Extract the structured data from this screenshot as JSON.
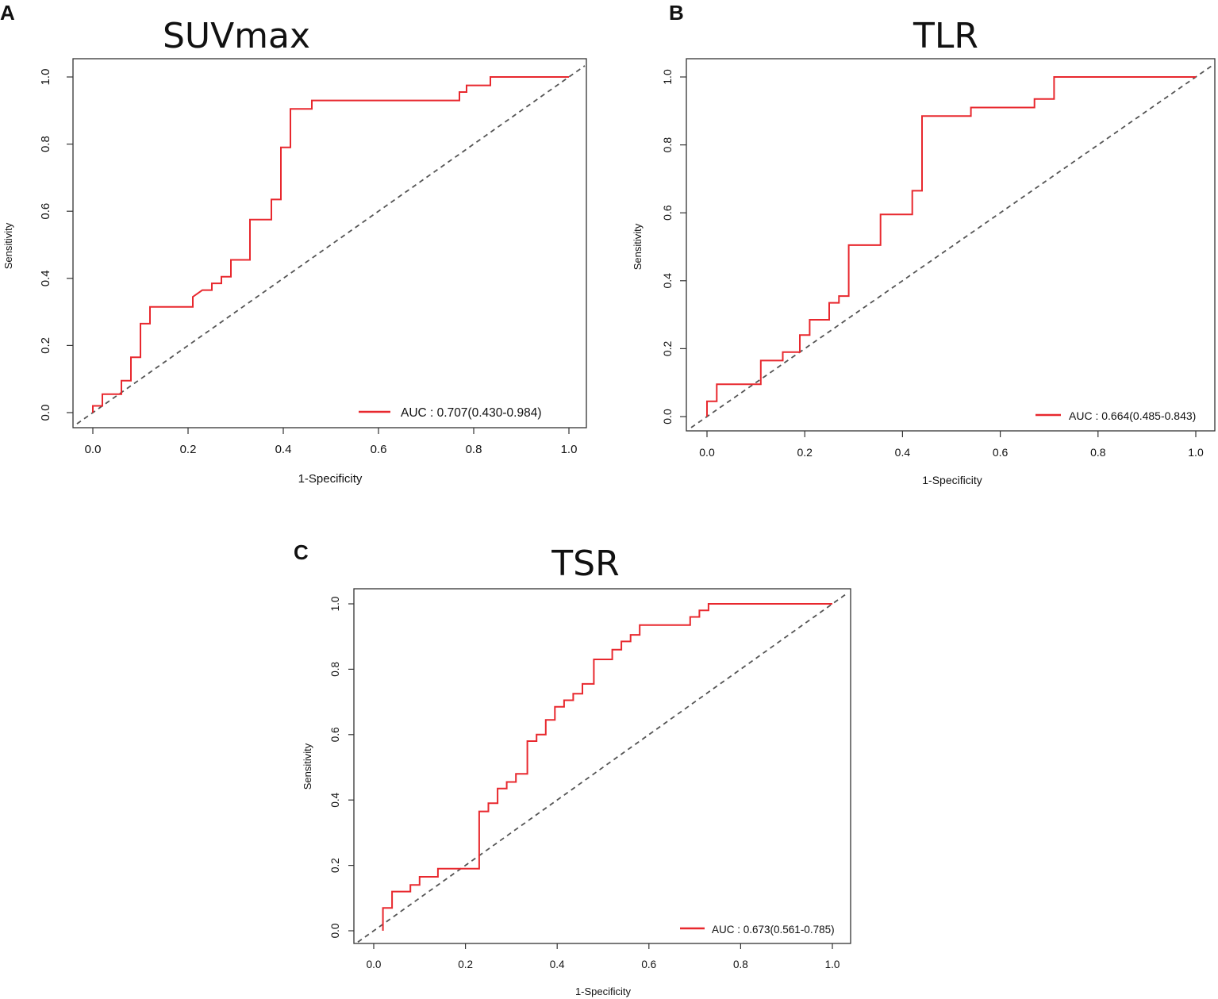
{
  "chart_data": [
    {
      "type": "line",
      "panel": "A",
      "title": "SUVmax",
      "xlabel": "1-Specificity",
      "ylabel": "Sensitivity",
      "xlim": [
        0,
        1
      ],
      "ylim": [
        0,
        1
      ],
      "xticks": [
        "0.0",
        "0.2",
        "0.4",
        "0.6",
        "0.8",
        "1.0"
      ],
      "yticks": [
        "0.0",
        "0.2",
        "0.4",
        "0.6",
        "0.8",
        "1.0"
      ],
      "legend": "AUC : 0.707(0.430-0.984)",
      "legend_position": "bottom-right",
      "reference_line": "diagonal dashed",
      "curve_color": "#e8282e",
      "series": [
        {
          "name": "SUVmax ROC",
          "x": [
            0,
            0,
            0.02,
            0.02,
            0.06,
            0.06,
            0.08,
            0.08,
            0.1,
            0.1,
            0.12,
            0.12,
            0.21,
            0.21,
            0.23,
            0.25,
            0.25,
            0.27,
            0.27,
            0.29,
            0.29,
            0.33,
            0.33,
            0.375,
            0.375,
            0.395,
            0.395,
            0.415,
            0.415,
            0.46,
            0.46,
            0.77,
            0.77,
            0.785,
            0.785,
            0.835,
            0.835,
            1.0
          ],
          "y": [
            0,
            0.02,
            0.02,
            0.055,
            0.055,
            0.095,
            0.095,
            0.165,
            0.165,
            0.265,
            0.265,
            0.315,
            0.315,
            0.345,
            0.365,
            0.365,
            0.385,
            0.385,
            0.405,
            0.405,
            0.455,
            0.455,
            0.575,
            0.575,
            0.635,
            0.635,
            0.79,
            0.79,
            0.905,
            0.905,
            0.93,
            0.93,
            0.955,
            0.955,
            0.975,
            0.975,
            1.0,
            1.0
          ]
        }
      ]
    },
    {
      "type": "line",
      "panel": "B",
      "title": "TLR",
      "xlabel": "1-Specificity",
      "ylabel": "Sensitivity",
      "xlim": [
        0,
        1
      ],
      "ylim": [
        0,
        1
      ],
      "xticks": [
        "0.0",
        "0.2",
        "0.4",
        "0.6",
        "0.8",
        "1.0"
      ],
      "yticks": [
        "0.0",
        "0.2",
        "0.4",
        "0.6",
        "0.8",
        "1.0"
      ],
      "legend": "AUC : 0.664(0.485-0.843)",
      "legend_position": "bottom-right",
      "reference_line": "diagonal dashed",
      "curve_color": "#e8282e",
      "series": [
        {
          "name": "TLR ROC",
          "x": [
            0,
            0,
            0.02,
            0.02,
            0.11,
            0.11,
            0.155,
            0.155,
            0.19,
            0.19,
            0.21,
            0.21,
            0.25,
            0.25,
            0.27,
            0.27,
            0.29,
            0.29,
            0.355,
            0.355,
            0.42,
            0.42,
            0.44,
            0.44,
            0.54,
            0.54,
            0.67,
            0.67,
            0.71,
            0.71,
            1.0
          ],
          "y": [
            0,
            0.045,
            0.045,
            0.095,
            0.095,
            0.165,
            0.165,
            0.19,
            0.19,
            0.24,
            0.24,
            0.285,
            0.285,
            0.335,
            0.335,
            0.355,
            0.355,
            0.505,
            0.505,
            0.595,
            0.595,
            0.665,
            0.665,
            0.885,
            0.885,
            0.91,
            0.91,
            0.935,
            0.935,
            1.0,
            1.0
          ]
        }
      ]
    },
    {
      "type": "line",
      "panel": "C",
      "title": "TSR",
      "xlabel": "1-Specificity",
      "ylabel": "Sensitivity",
      "xlim": [
        0,
        1
      ],
      "ylim": [
        0,
        1
      ],
      "xticks": [
        "0.0",
        "0.2",
        "0.4",
        "0.6",
        "0.8",
        "1.0"
      ],
      "yticks": [
        "0.0",
        "0.2",
        "0.4",
        "0.6",
        "0.8",
        "1.0"
      ],
      "legend": "AUC : 0.673(0.561-0.785)",
      "legend_position": "bottom-right",
      "reference_line": "diagonal dashed",
      "curve_color": "#e8282e",
      "series": [
        {
          "name": "TSR ROC",
          "x": [
            0.02,
            0.02,
            0.04,
            0.04,
            0.08,
            0.08,
            0.1,
            0.1,
            0.14,
            0.14,
            0.23,
            0.23,
            0.25,
            0.25,
            0.27,
            0.27,
            0.29,
            0.29,
            0.31,
            0.31,
            0.335,
            0.335,
            0.355,
            0.355,
            0.375,
            0.375,
            0.395,
            0.395,
            0.415,
            0.415,
            0.435,
            0.435,
            0.455,
            0.455,
            0.48,
            0.48,
            0.52,
            0.52,
            0.54,
            0.54,
            0.56,
            0.56,
            0.58,
            0.58,
            0.69,
            0.69,
            0.71,
            0.71,
            0.73,
            0.73,
            1.0
          ],
          "y": [
            0,
            0.07,
            0.07,
            0.12,
            0.12,
            0.14,
            0.14,
            0.165,
            0.165,
            0.19,
            0.19,
            0.365,
            0.365,
            0.39,
            0.39,
            0.435,
            0.435,
            0.455,
            0.455,
            0.48,
            0.48,
            0.58,
            0.58,
            0.6,
            0.6,
            0.645,
            0.645,
            0.685,
            0.685,
            0.705,
            0.705,
            0.725,
            0.725,
            0.755,
            0.755,
            0.83,
            0.83,
            0.86,
            0.86,
            0.885,
            0.885,
            0.905,
            0.905,
            0.935,
            0.935,
            0.96,
            0.96,
            0.98,
            0.98,
            1.0,
            1.0
          ]
        }
      ]
    }
  ]
}
